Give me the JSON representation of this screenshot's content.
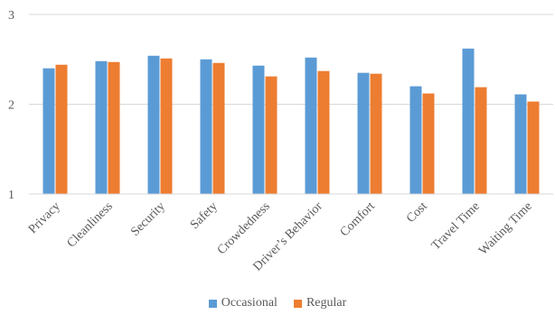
{
  "chart_data": {
    "type": "bar",
    "categories": [
      "Privacy",
      "Cleanliness",
      "Security",
      "Safety",
      "Crowdedness",
      "Driver’s Behavior",
      "Comfort",
      "Cost",
      "Travel Time",
      "Waiting Time"
    ],
    "series": [
      {
        "name": "Occasional",
        "color": "#5B9BD5",
        "values": [
          2.4,
          2.48,
          2.54,
          2.5,
          2.43,
          2.52,
          2.35,
          2.2,
          2.62,
          2.11
        ]
      },
      {
        "name": "Regular",
        "color": "#ED7D31",
        "values": [
          2.44,
          2.47,
          2.51,
          2.46,
          2.31,
          2.37,
          2.34,
          2.12,
          2.19,
          2.03
        ]
      }
    ],
    "yticks": [
      "1",
      "2",
      "3"
    ],
    "ylim": [
      1,
      3
    ],
    "grid": true,
    "legend_position": "bottom"
  }
}
